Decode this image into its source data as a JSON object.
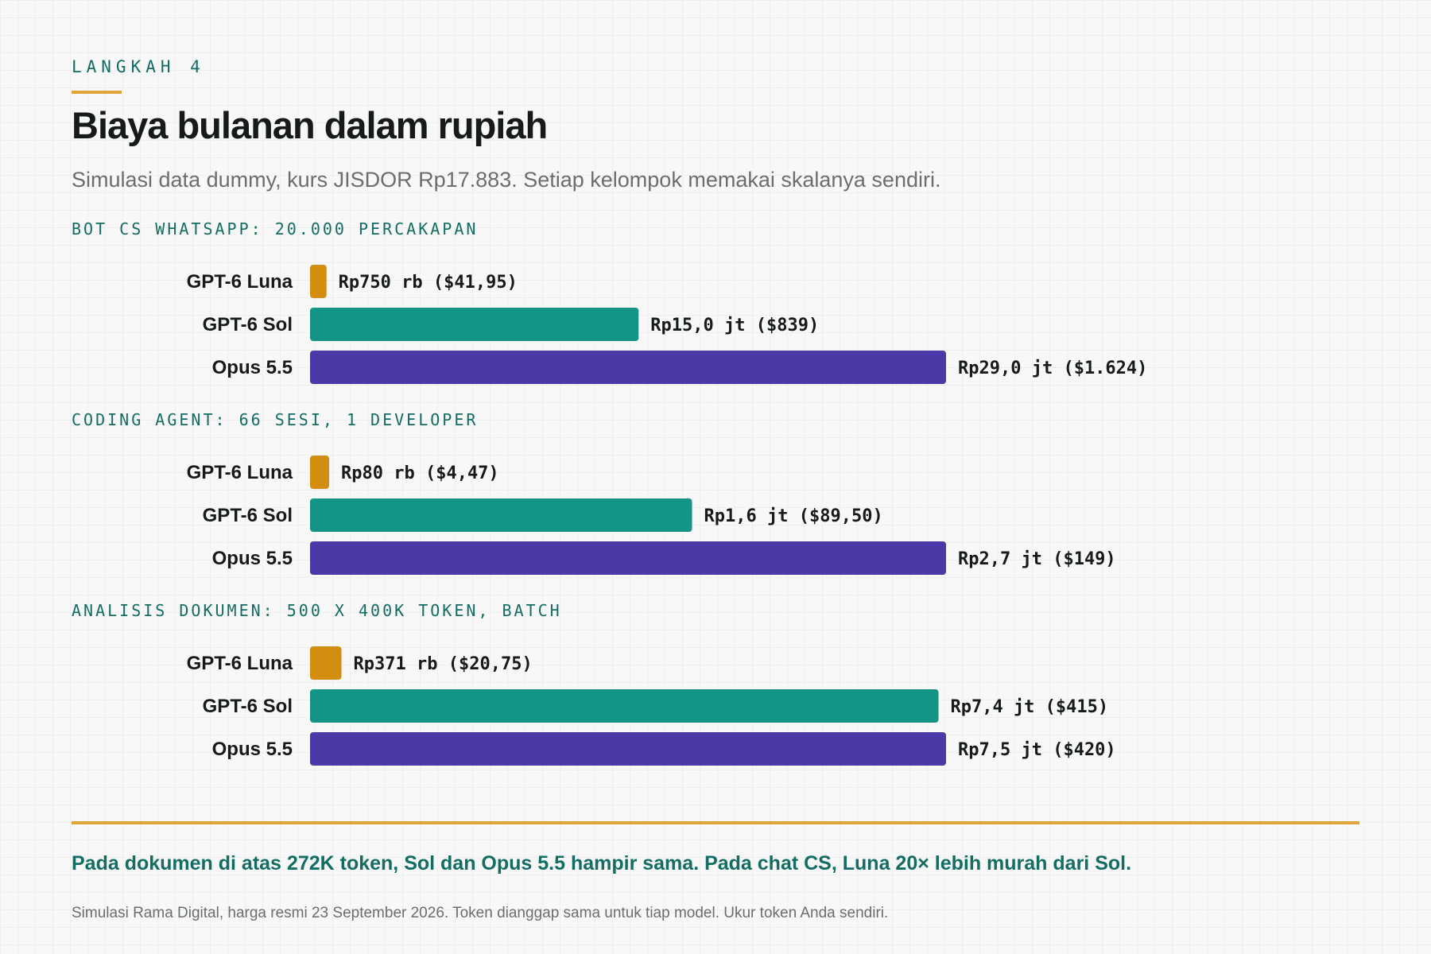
{
  "header": {
    "eyebrow": "LANGKAH 4",
    "title": "Biaya bulanan dalam rupiah",
    "subtitle": "Simulasi data dummy, kurs JISDOR Rp17.883. Setiap kelompok memakai skalanya sendiri."
  },
  "colors": {
    "accent": "#e0a43a",
    "group_title": "#136d63",
    "GPT-6 Luna": "#d38e12",
    "GPT-6 Sol": "#139485",
    "Opus 5.5": "#4a3aa8"
  },
  "chart_data": {
    "type": "bar",
    "orientation": "horizontal",
    "scale": "independent per group",
    "grid": false,
    "legend": "none",
    "groups": [
      {
        "title": "BOT CS WHATSAPP: 20.000 PERCAKAPAN",
        "bars": [
          {
            "category": "GPT-6 Luna",
            "value_usd": 41.95,
            "label": "Rp750 rb ($41,95)"
          },
          {
            "category": "GPT-6 Sol",
            "value_usd": 839,
            "label": "Rp15,0 jt ($839)"
          },
          {
            "category": "Opus 5.5",
            "value_usd": 1624,
            "label": "Rp29,0 jt ($1.624)"
          }
        ]
      },
      {
        "title": "CODING AGENT: 66 SESI, 1 DEVELOPER",
        "bars": [
          {
            "category": "GPT-6 Luna",
            "value_usd": 4.47,
            "label": "Rp80 rb ($4,47)"
          },
          {
            "category": "GPT-6 Sol",
            "value_usd": 89.5,
            "label": "Rp1,6 jt ($89,50)"
          },
          {
            "category": "Opus 5.5",
            "value_usd": 149,
            "label": "Rp2,7 jt ($149)"
          }
        ]
      },
      {
        "title": "ANALISIS DOKUMEN: 500 X 400K TOKEN, BATCH",
        "bars": [
          {
            "category": "GPT-6 Luna",
            "value_usd": 20.75,
            "label": "Rp371 rb ($20,75)"
          },
          {
            "category": "GPT-6 Sol",
            "value_usd": 415,
            "label": "Rp7,4 jt ($415)"
          },
          {
            "category": "Opus 5.5",
            "value_usd": 420,
            "label": "Rp7,5 jt ($420)"
          }
        ]
      }
    ]
  },
  "footer": {
    "takeaway": "Pada dokumen di atas 272K token, Sol dan Opus 5.5 hampir sama. Pada chat CS, Luna 20× lebih murah dari Sol.",
    "note": "Simulasi Rama Digital, harga resmi 23 September 2026. Token dianggap sama untuk tiap model. Ukur token Anda sendiri."
  }
}
